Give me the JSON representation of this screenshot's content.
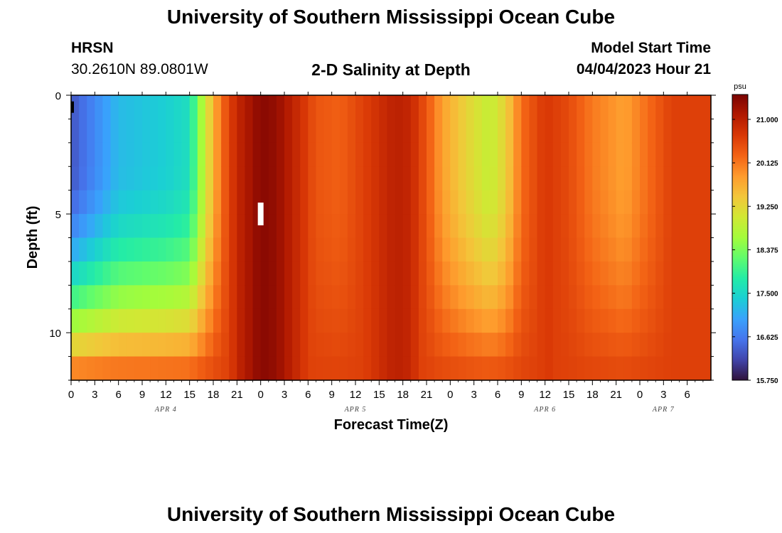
{
  "header": {
    "title": "University of Southern Mississippi Ocean Cube",
    "station": "HRSN",
    "coords": "30.2610N  89.0801W",
    "subtitle": "2-D Salinity at Depth",
    "model_label": "Model Start Time",
    "model_time": "04/04/2023 Hour 21"
  },
  "footer": {
    "title": "University of Southern Mississippi Ocean Cube"
  },
  "colors": {
    "colormap": [
      "#30123b",
      "#4145ab",
      "#4675ed",
      "#39a2fc",
      "#1bcfd4",
      "#24eca6",
      "#61fc6c",
      "#a4fc3b",
      "#d1e834",
      "#f3c63a",
      "#fe9b2d",
      "#f36315",
      "#d93806",
      "#b11901",
      "#7a0402"
    ],
    "frame": "#000000",
    "marker": "#ffffff"
  },
  "chart_data": {
    "type": "heatmap",
    "title": "2-D Salinity at Depth",
    "xlabel": "Forecast Time(Z)",
    "ylabel": "Depth (ft)",
    "x_start_hour": 0,
    "x_end_hour": 81,
    "x_step_hours": 1,
    "x_tick_step_hours": 3,
    "x_tick_labels": [
      "0",
      "3",
      "6",
      "9",
      "12",
      "15",
      "18",
      "21",
      "0",
      "3",
      "6",
      "9",
      "12",
      "15",
      "18",
      "21",
      "0",
      "3",
      "6",
      "9",
      "12",
      "15",
      "18",
      "21",
      "0",
      "3",
      "6"
    ],
    "date_labels": [
      {
        "label": "APR 4",
        "hour": 12
      },
      {
        "label": "APR 5",
        "hour": 36
      },
      {
        "label": "APR 6",
        "hour": 60
      },
      {
        "label": "APR 7",
        "hour": 75
      }
    ],
    "y_ticks": [
      0,
      5,
      10
    ],
    "y_minor_step": 1,
    "ylim": [
      0,
      12
    ],
    "depth_layers": [
      0.5,
      1.5,
      2.5,
      3.5,
      4.5,
      5.5,
      6.5,
      7.5,
      8.5,
      9.5,
      10.5,
      11.5
    ],
    "colorbar": {
      "label": "psu",
      "min": 15.75,
      "max": 21.5,
      "ticks": [
        15.75,
        16.625,
        17.5,
        18.375,
        19.25,
        20.125,
        21.0
      ],
      "tick_labels": [
        "15.750",
        "16.625",
        "17.500",
        "18.375",
        "19.250",
        "20.125",
        "21.000"
      ]
    },
    "surface_salinity_by_hour": [
      {
        "hour": 0,
        "value": 16.3
      },
      {
        "hour": 6,
        "value": 17.2
      },
      {
        "hour": 12,
        "value": 17.4
      },
      {
        "hour": 15,
        "value": 17.6
      },
      {
        "hour": 17,
        "value": 19.0
      },
      {
        "hour": 19,
        "value": 20.2
      },
      {
        "hour": 21,
        "value": 20.9
      },
      {
        "hour": 24,
        "value": 21.4
      },
      {
        "hour": 26,
        "value": 21.3
      },
      {
        "hour": 29,
        "value": 20.8
      },
      {
        "hour": 31,
        "value": 20.4
      },
      {
        "hour": 34,
        "value": 20.3
      },
      {
        "hour": 38,
        "value": 20.7
      },
      {
        "hour": 41,
        "value": 21.0
      },
      {
        "hour": 43,
        "value": 20.9
      },
      {
        "hour": 45,
        "value": 20.4
      },
      {
        "hour": 47,
        "value": 19.8
      },
      {
        "hour": 50,
        "value": 19.3
      },
      {
        "hour": 53,
        "value": 18.9
      },
      {
        "hour": 55,
        "value": 19.3
      },
      {
        "hour": 57,
        "value": 20.2
      },
      {
        "hour": 60,
        "value": 20.7
      },
      {
        "hour": 63,
        "value": 20.5
      },
      {
        "hour": 66,
        "value": 20.1
      },
      {
        "hour": 70,
        "value": 19.8
      },
      {
        "hour": 73,
        "value": 20.2
      },
      {
        "hour": 76,
        "value": 20.6
      },
      {
        "hour": 81,
        "value": 20.6
      }
    ],
    "missing_points": [
      {
        "hour": 0,
        "depth": 0.5
      },
      {
        "hour": 24,
        "depth": 5.0
      }
    ]
  }
}
